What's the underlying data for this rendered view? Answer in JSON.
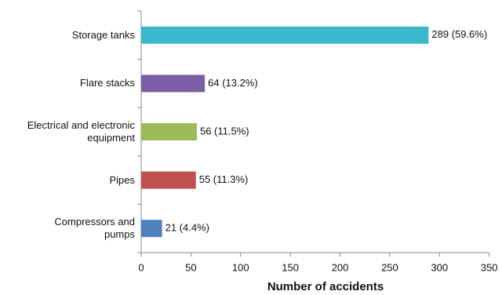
{
  "chart_data": {
    "type": "bar",
    "orientation": "horizontal",
    "categories": [
      "Storage tanks",
      "Flare stacks",
      "Electrical and electronic equipment",
      "Pipes",
      "Compressors and pumps"
    ],
    "values": [
      289,
      64,
      56,
      55,
      21
    ],
    "value_labels": [
      "289 (59.6%)",
      "64 (13.2%)",
      "56 (11.5%)",
      "55 (11.3%)",
      "21 (4.4%)"
    ],
    "colors": [
      "#3bb8cc",
      "#7b5ea7",
      "#9bbb59",
      "#c0504d",
      "#4f81bd"
    ],
    "xlabel": "Number of accidents",
    "xlim": [
      0,
      350
    ],
    "xticks": [
      0,
      50,
      100,
      150,
      200,
      250,
      300,
      350
    ],
    "grid": false
  }
}
